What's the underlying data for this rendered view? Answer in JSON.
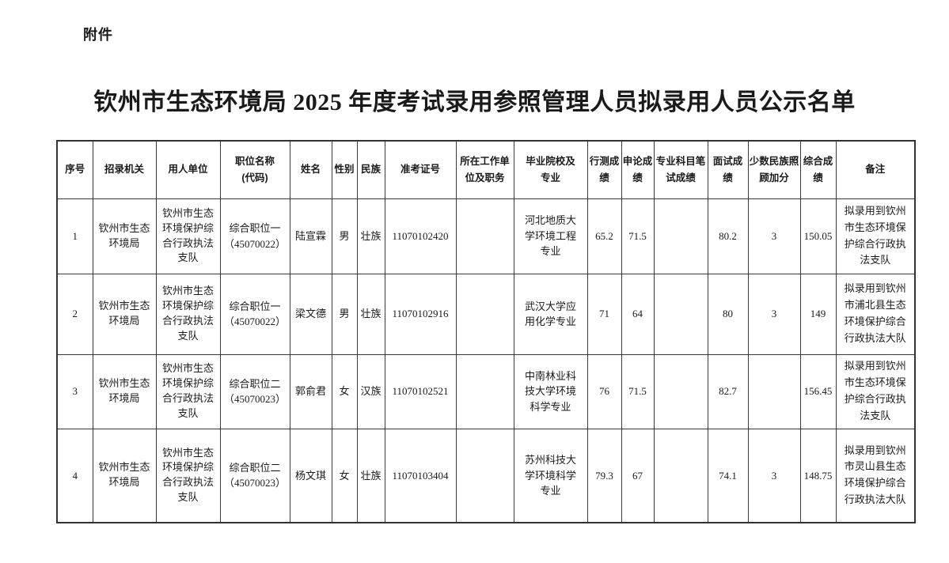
{
  "attachment_label": "附件",
  "title": "钦州市生态环境局 2025 年度考试录用参照管理人员拟录用人员公示名单",
  "table": {
    "columns": [
      "序号",
      "招录机关",
      "用人单位",
      "职位名称\n(代码)",
      "姓名",
      "性别",
      "民族",
      "准考证号",
      "所在工作单位及职务",
      "毕业院校及专业",
      "行测成绩",
      "申论成绩",
      "专业科目笔试成绩",
      "面试成绩",
      "少数民族照顾加分",
      "综合成绩",
      "备注"
    ],
    "rows": [
      {
        "cells": [
          "1",
          "钦州市生态环境局",
          "钦州市生态环境保护综合行政执法支队",
          "综合职位一\n（45070022）",
          "陆宣霖",
          "男",
          "壮族",
          "11070102420",
          "",
          "河北地质大学环境工程专业",
          "65.2",
          "71.5",
          "",
          "80.2",
          "3",
          "150.05",
          "拟录用到钦州市生态环境保护综合行政执法支队"
        ]
      },
      {
        "cells": [
          "2",
          "钦州市生态环境局",
          "钦州市生态环境保护综合行政执法支队",
          "综合职位一\n（45070022）",
          "梁文德",
          "男",
          "壮族",
          "11070102916",
          "",
          "武汉大学应用化学专业",
          "71",
          "64",
          "",
          "80",
          "3",
          "149",
          "拟录用到钦州市浦北县生态环境保护综合行政执法大队"
        ]
      },
      {
        "cells": [
          "3",
          "钦州市生态环境局",
          "钦州市生态环境保护综合行政执法支队",
          "综合职位二\n（45070023）",
          "郭俞君",
          "女",
          "汉族",
          "11070102521",
          "",
          "中南林业科技大学环境科学专业",
          "76",
          "71.5",
          "",
          "82.7",
          "",
          "156.45",
          "拟录用到钦州市生态环境保护综合行政执法支队"
        ]
      },
      {
        "cells": [
          "4",
          "钦州市生态环境局",
          "钦州市生态环境保护综合行政执法支队",
          "综合职位二\n（45070023）",
          "杨文琪",
          "女",
          "壮族",
          "11070103404",
          "",
          "苏州科技大学环境科学专业",
          "79.3",
          "67",
          "",
          "74.1",
          "3",
          "148.75",
          "拟录用到钦州市灵山县生态环境保护综合行政执法大队"
        ]
      }
    ]
  }
}
